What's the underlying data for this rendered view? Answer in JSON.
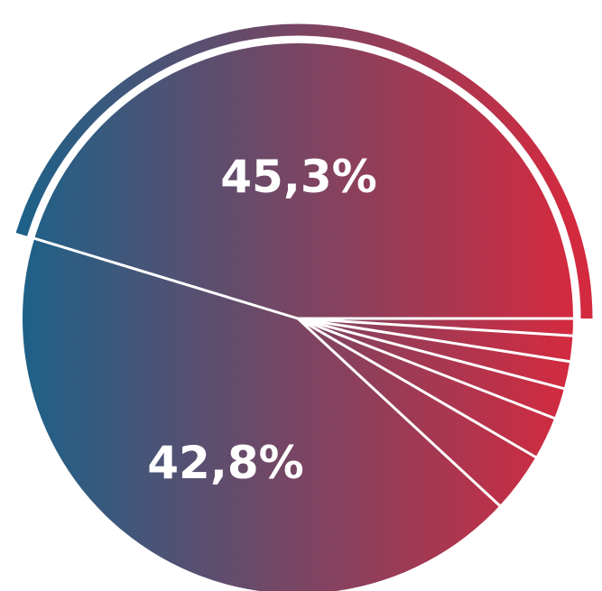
{
  "chart_data": {
    "type": "pie",
    "values": [
      45.3,
      42.8,
      3.5,
      2.5,
      1.8,
      1.6,
      1.5,
      1.0
    ],
    "data_labels": [
      "45,3%",
      "42,8%",
      "",
      "",
      "",
      "",
      "",
      ""
    ],
    "start_angle_deg": 0,
    "direction": "clockwise",
    "highlight_arc_slice": 0
  },
  "colors": {
    "gradient_left": "#1e6188",
    "gradient_right": "#d42a3f",
    "separator": "#ffffff",
    "background": "#ffffff"
  }
}
